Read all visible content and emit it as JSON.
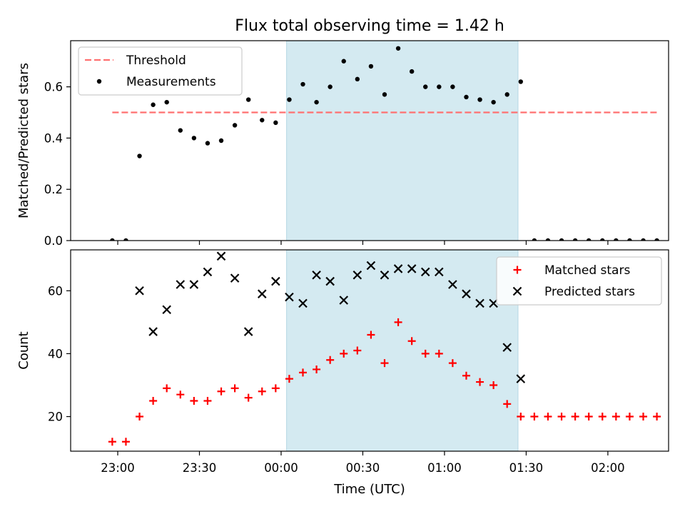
{
  "chart_data": [
    {
      "type": "scatter",
      "title": "Flux total observing time = 1.42 h",
      "ylabel": "Matched/Predicted stars",
      "ylim": [
        0,
        0.78
      ],
      "yticks": [
        0.0,
        0.2,
        0.4,
        0.6
      ],
      "ytick_labels": [
        "0.0",
        "0.2",
        "0.4",
        "0.6"
      ],
      "legend": {
        "placement": "upper-left",
        "entries": [
          "Threshold",
          "Measurements"
        ]
      },
      "threshold": {
        "name": "Threshold",
        "value": 0.5,
        "x_start": "22:58",
        "x_end": "02:18",
        "color": "#ff7070"
      },
      "highlight": {
        "start": "00:02",
        "end": "01:27",
        "color": "#d4eaf1"
      },
      "series": [
        {
          "name": "Measurements",
          "marker": "dot",
          "color": "#000000",
          "x": [
            "22:58",
            "23:03",
            "23:08",
            "23:13",
            "23:18",
            "23:23",
            "23:28",
            "23:33",
            "23:38",
            "23:43",
            "23:48",
            "23:53",
            "23:58",
            "00:03",
            "00:08",
            "00:13",
            "00:18",
            "00:23",
            "00:28",
            "00:33",
            "00:38",
            "00:43",
            "00:48",
            "00:53",
            "00:58",
            "01:03",
            "01:08",
            "01:13",
            "01:18",
            "01:23",
            "01:28",
            "01:33",
            "01:38",
            "01:43",
            "01:48",
            "01:53",
            "01:58",
            "02:03",
            "02:08",
            "02:13",
            "02:18"
          ],
          "y": [
            0.0,
            0.0,
            0.33,
            0.53,
            0.54,
            0.43,
            0.4,
            0.38,
            0.39,
            0.45,
            0.55,
            0.47,
            0.46,
            0.55,
            0.61,
            0.54,
            0.6,
            0.7,
            0.63,
            0.68,
            0.57,
            0.75,
            0.66,
            0.6,
            0.6,
            0.6,
            0.56,
            0.55,
            0.54,
            0.57,
            0.62,
            0.0,
            0.0,
            0.0,
            0.0,
            0.0,
            0.0,
            0.0,
            0.0,
            0.0,
            0.0
          ]
        }
      ]
    },
    {
      "type": "scatter",
      "xlabel": "Time (UTC)",
      "ylabel": "Count",
      "ylim": [
        9,
        73
      ],
      "yticks": [
        20,
        40,
        60
      ],
      "ytick_labels": [
        "20",
        "40",
        "60"
      ],
      "xticks": [
        "23:00",
        "23:30",
        "00:00",
        "00:30",
        "01:00",
        "01:30",
        "02:00"
      ],
      "legend": {
        "placement": "upper-right",
        "entries": [
          "Matched stars",
          "Predicted stars"
        ]
      },
      "highlight": {
        "start": "00:02",
        "end": "01:27",
        "color": "#d4eaf1"
      },
      "series": [
        {
          "name": "Matched stars",
          "marker": "plus",
          "color": "#ff0000",
          "x": [
            "22:58",
            "23:03",
            "23:08",
            "23:13",
            "23:18",
            "23:23",
            "23:28",
            "23:33",
            "23:38",
            "23:43",
            "23:48",
            "23:53",
            "23:58",
            "00:03",
            "00:08",
            "00:13",
            "00:18",
            "00:23",
            "00:28",
            "00:33",
            "00:38",
            "00:43",
            "00:48",
            "00:53",
            "00:58",
            "01:03",
            "01:08",
            "01:13",
            "01:18",
            "01:23",
            "01:28",
            "01:33",
            "01:38",
            "01:43",
            "01:48",
            "01:53",
            "01:58",
            "02:03",
            "02:08",
            "02:13",
            "02:18"
          ],
          "y": [
            12,
            12,
            20,
            25,
            29,
            27,
            25,
            25,
            28,
            29,
            26,
            28,
            29,
            32,
            34,
            35,
            38,
            40,
            41,
            46,
            37,
            50,
            44,
            40,
            40,
            37,
            33,
            31,
            30,
            24,
            20,
            20,
            20,
            20,
            20,
            20,
            20,
            20,
            20,
            20,
            20
          ]
        },
        {
          "name": "Predicted stars",
          "marker": "x",
          "color": "#000000",
          "x": [
            "23:08",
            "23:13",
            "23:18",
            "23:23",
            "23:28",
            "23:33",
            "23:38",
            "23:43",
            "23:48",
            "23:53",
            "23:58",
            "00:03",
            "00:08",
            "00:13",
            "00:18",
            "00:23",
            "00:28",
            "00:33",
            "00:38",
            "00:43",
            "00:48",
            "00:53",
            "00:58",
            "01:03",
            "01:08",
            "01:13",
            "01:18",
            "01:23",
            "01:28"
          ],
          "y": [
            60,
            47,
            54,
            62,
            62,
            66,
            71,
            64,
            47,
            59,
            63,
            58,
            56,
            65,
            63,
            57,
            65,
            68,
            65,
            67,
            67,
            66,
            66,
            62,
            59,
            56,
            56,
            42,
            32
          ]
        }
      ]
    }
  ]
}
